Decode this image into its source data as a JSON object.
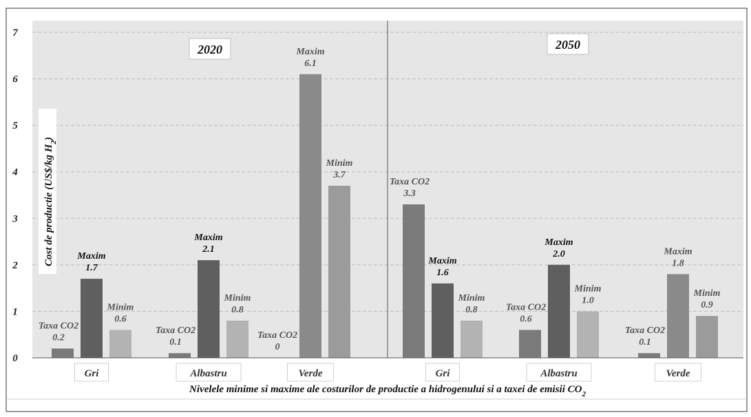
{
  "chart_data": {
    "type": "bar",
    "ylim": [
      0,
      7
    ],
    "yticks": [
      "0",
      "1",
      "2",
      "3",
      "4",
      "5",
      "6",
      "7"
    ],
    "ylabel_main": "Cost de productie (US$/kg H",
    "ylabel_sub": "2",
    "ylabel_end": ")",
    "xlabel_main": "Nivelele minime si maxime ale costurilor de productie a hidrogenului si a taxei de emisii CO",
    "xlabel_sub": "2",
    "grid": true,
    "periods": [
      {
        "label": "2020",
        "groups": [
          {
            "label": "Gri",
            "bars": [
              {
                "name": "Taxa CO2",
                "value": 0.2,
                "value_label": "0.2",
                "color": "#7a7a7a"
              },
              {
                "name": "Maxim",
                "value": 1.7,
                "value_label": "1.7",
                "color": "#5f5f5f"
              },
              {
                "name": "Minim",
                "value": 0.6,
                "value_label": "0.6",
                "color": "#b3b3b3"
              }
            ]
          },
          {
            "label": "Albastru",
            "bars": [
              {
                "name": "Taxa CO2",
                "value": 0.1,
                "value_label": "0.1",
                "color": "#7a7a7a"
              },
              {
                "name": "Maxim",
                "value": 2.1,
                "value_label": "2.1",
                "color": "#5f5f5f"
              },
              {
                "name": "Minim",
                "value": 0.8,
                "value_label": "0.8",
                "color": "#b3b3b3"
              }
            ]
          },
          {
            "label": "Verde",
            "bars": [
              {
                "name": "Taxa CO2",
                "value": 0,
                "value_label": "0",
                "color": "#7a7a7a"
              },
              {
                "name": "Maxim",
                "value": 6.1,
                "value_label": "6.1",
                "color": "#8a8a8a"
              },
              {
                "name": "Minim",
                "value": 3.7,
                "value_label": "3.7",
                "color": "#9b9b9b"
              }
            ]
          }
        ]
      },
      {
        "label": "2050",
        "groups": [
          {
            "label": "Gri",
            "bars": [
              {
                "name": "Taxa CO2",
                "value": 3.3,
                "value_label": "3.3",
                "color": "#7a7a7a"
              },
              {
                "name": "Maxim",
                "value": 1.6,
                "value_label": "1.6",
                "color": "#5f5f5f"
              },
              {
                "name": "Minim",
                "value": 0.8,
                "value_label": "0.8",
                "color": "#b3b3b3"
              }
            ]
          },
          {
            "label": "Albastru",
            "bars": [
              {
                "name": "Taxa CO2",
                "value": 0.6,
                "value_label": "0.6",
                "color": "#7a7a7a"
              },
              {
                "name": "Maxim",
                "value": 2.0,
                "value_label": "2.0",
                "color": "#5f5f5f"
              },
              {
                "name": "Minim",
                "value": 1.0,
                "value_label": "1.0",
                "color": "#b3b3b3"
              }
            ]
          },
          {
            "label": "Verde",
            "bars": [
              {
                "name": "Taxa CO2",
                "value": 0.1,
                "value_label": "0.1",
                "color": "#7a7a7a"
              },
              {
                "name": "Maxim",
                "value": 1.8,
                "value_label": "1.8",
                "color": "#8a8a8a"
              },
              {
                "name": "Minim",
                "value": 0.9,
                "value_label": "0.9",
                "color": "#9b9b9b"
              }
            ]
          }
        ]
      }
    ]
  }
}
